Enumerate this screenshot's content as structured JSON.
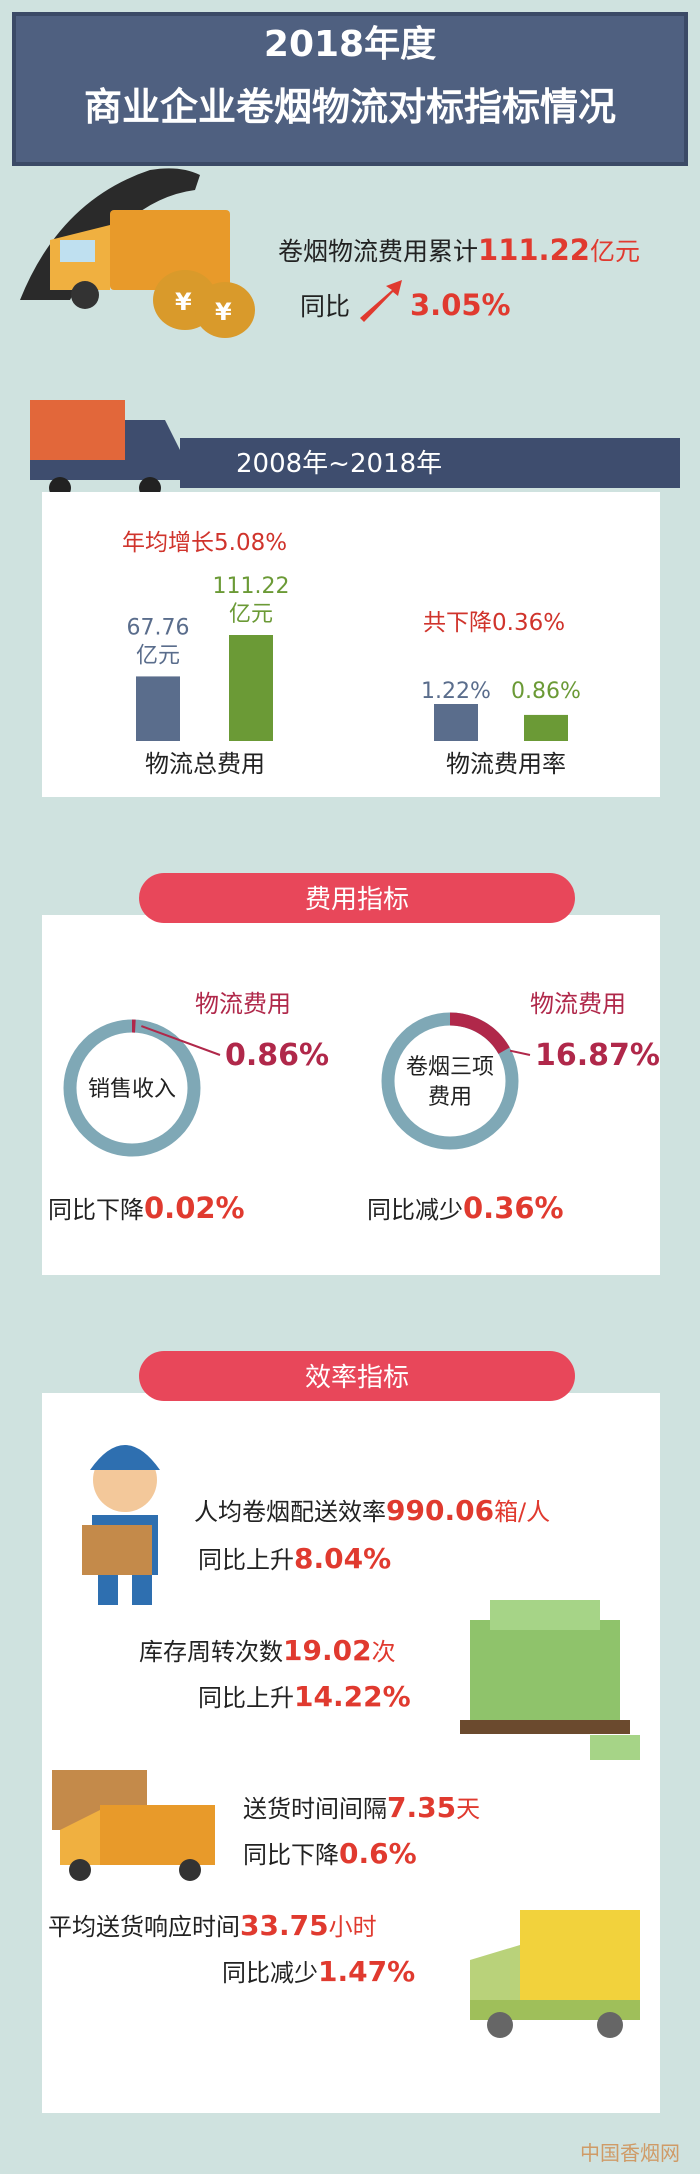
{
  "header": {
    "title_line1": "2018年度",
    "title_line2": "商业企业卷烟物流对标指标情况"
  },
  "summary": {
    "label": "卷烟物流费用累计",
    "value": "111.22",
    "unit": "亿元",
    "yoy_label": "同比",
    "yoy_value": "3.05%"
  },
  "period": "2008年~2018年",
  "comparison": [
    {
      "note": "年均增长5.08%",
      "caption": "物流总费用",
      "unit": "亿元",
      "values": [
        67.76,
        111.22
      ],
      "value_labels": [
        "67.76",
        "111.22"
      ],
      "colors": [
        "#5a6d8c",
        "#6b9a36"
      ]
    },
    {
      "note": "共下降0.36%",
      "caption": "物流费用率",
      "values": [
        1.22,
        0.86
      ],
      "value_labels": [
        "1.22%",
        "0.86%"
      ],
      "colors": [
        "#5a6d8c",
        "#6b9a36"
      ]
    }
  ],
  "cost_indicators": {
    "title": "费用指标",
    "items": [
      {
        "center": [
          "销售收入"
        ],
        "label": "物流费用",
        "value": 0.86,
        "value_label": "0.86%",
        "change_label": "同比下降",
        "change_value": "0.02%"
      },
      {
        "center": [
          "卷烟三项",
          "费用"
        ],
        "label": "物流费用",
        "value": 16.87,
        "value_label": "16.87%",
        "change_label": "同比减少",
        "change_value": "0.36%"
      }
    ]
  },
  "efficiency": {
    "title": "效率指标",
    "items": [
      {
        "label": "人均卷烟配送效率",
        "value": "990.06",
        "unit": "箱/人",
        "change_label": "同比上升",
        "change_value": "8.04%"
      },
      {
        "label": "库存周转次数",
        "value": "19.02",
        "unit": "次",
        "change_label": "同比上升",
        "change_value": "14.22%"
      },
      {
        "label": "送货时间间隔",
        "value": "7.35",
        "unit": "天",
        "change_label": "同比下降",
        "change_value": "0.6%"
      },
      {
        "label": "平均送货响应时间",
        "value": "33.75",
        "unit": "小时",
        "change_label": "同比减少",
        "change_value": "1.47%"
      }
    ]
  },
  "watermark": "中国香烟网"
}
